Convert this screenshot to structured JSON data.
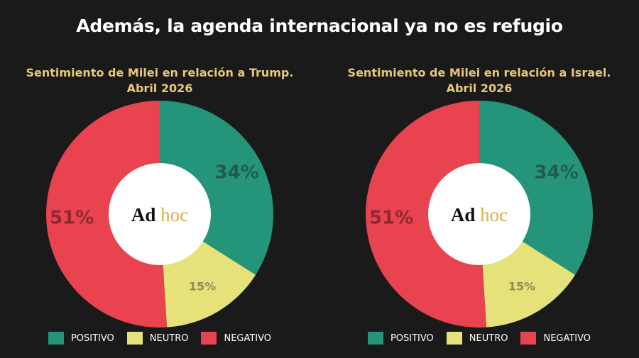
{
  "header": {
    "title": "Además, la agenda internacional ya no es refugio"
  },
  "logo": {
    "word1": "Ad",
    "word2": "hoc"
  },
  "colors": {
    "positivo": "#24947a",
    "neutro": "#e6e27a",
    "negativo": "#e8434f",
    "background": "#1a1a1a"
  },
  "chart_data": [
    {
      "type": "pie",
      "title": "Sentimiento de Milei en relación a Trump.",
      "subtitle": "Abril 2026",
      "categories": [
        "POSITIVO",
        "NEUTRO",
        "NEGATIVO"
      ],
      "values": [
        34,
        15,
        51
      ],
      "labels": [
        "34%",
        "15%",
        "51%"
      ],
      "legend_position": "bottom"
    },
    {
      "type": "pie",
      "title": "Sentimiento de Milei en relación a Israel.",
      "subtitle": "Abril 2026",
      "categories": [
        "POSITIVO",
        "NEUTRO",
        "NEGATIVO"
      ],
      "values": [
        34,
        15,
        51
      ],
      "labels": [
        "34%",
        "15%",
        "51%"
      ],
      "legend_position": "bottom"
    }
  ]
}
